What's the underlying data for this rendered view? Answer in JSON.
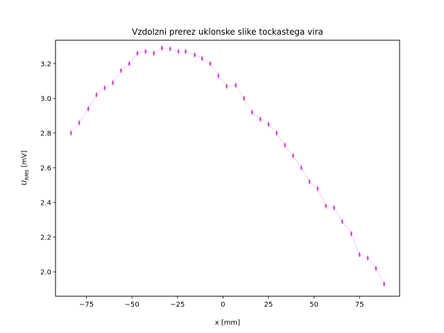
{
  "chart_data": {
    "type": "scatter",
    "title": "Vzdolzni prerez uklonske slike tockastega vira",
    "xlabel": "x [mm]",
    "ylabel_main": "U",
    "ylabel_sub": "RMS",
    "ylabel_unit": " [mV]",
    "xlim": [
      -92,
      97
    ],
    "ylim": [
      1.86,
      3.335
    ],
    "xticks": [
      -75,
      -50,
      -25,
      0,
      25,
      50,
      75
    ],
    "xtick_labels": [
      "−75",
      "−50",
      "−25",
      "0",
      "25",
      "50",
      "75"
    ],
    "yticks": [
      2.0,
      2.2,
      2.4,
      2.6,
      2.8,
      3.0,
      3.2
    ],
    "ytick_labels": [
      "2.0",
      "2.2",
      "2.4",
      "2.6",
      "2.8",
      "3.0",
      "3.2"
    ],
    "grid": false,
    "series": [
      {
        "marker_color": "#cc44cc",
        "line_color": "#f4c2f4",
        "y_error": 0.015,
        "x": [
          -83.5,
          -79,
          -74,
          -69.5,
          -65,
          -60.5,
          -56,
          -51.5,
          -47,
          -42.5,
          -38,
          -33.5,
          -29,
          -24.5,
          -20.5,
          -15.5,
          -11.5,
          -7,
          -2.5,
          2,
          7,
          11.5,
          16,
          20.5,
          25,
          29.5,
          34,
          38.5,
          43,
          47.5,
          52,
          56.5,
          61,
          65.5,
          70.5,
          75,
          79.5,
          84,
          88.5
        ],
        "y": [
          2.8,
          2.86,
          2.94,
          3.02,
          3.06,
          3.09,
          3.16,
          3.2,
          3.26,
          3.27,
          3.26,
          3.29,
          3.285,
          3.27,
          3.27,
          3.25,
          3.23,
          3.2,
          3.13,
          3.07,
          3.075,
          3.0,
          2.92,
          2.88,
          2.85,
          2.8,
          2.73,
          2.67,
          2.6,
          2.52,
          2.48,
          2.38,
          2.37,
          2.29,
          2.22,
          2.1,
          2.08,
          2.02,
          1.93
        ]
      }
    ]
  }
}
